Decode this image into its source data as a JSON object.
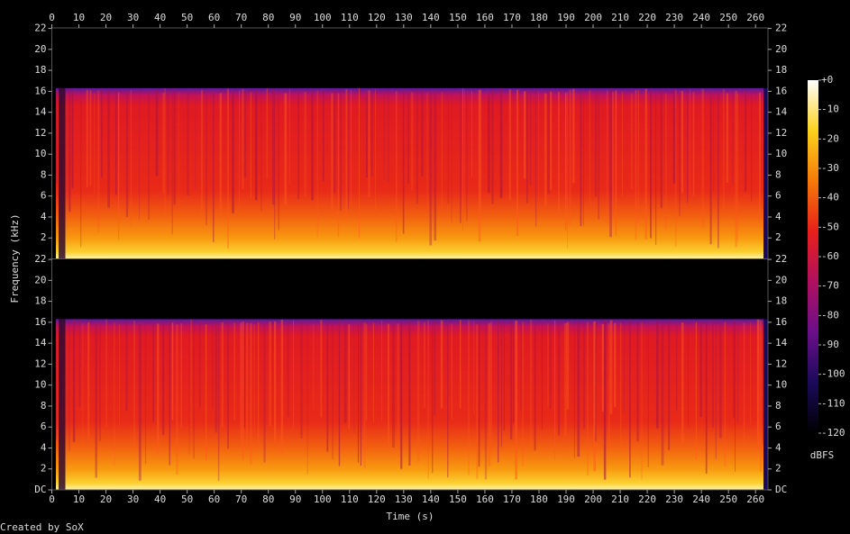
{
  "chart_data": [
    {
      "type": "spectrogram",
      "xlim": [
        0,
        264.6
      ],
      "xticks": [
        0,
        10,
        20,
        30,
        40,
        50,
        60,
        70,
        80,
        90,
        100,
        110,
        120,
        130,
        140,
        150,
        160,
        170,
        180,
        190,
        200,
        210,
        220,
        230,
        240,
        250,
        260
      ],
      "ylim": [
        0,
        22.05
      ],
      "yticks": [
        2,
        4,
        6,
        8,
        10,
        12,
        14,
        16,
        18,
        20,
        22
      ]
    },
    {
      "type": "spectrogram",
      "xlim": [
        0,
        264.6
      ],
      "xticks": [
        0,
        10,
        20,
        30,
        40,
        50,
        60,
        70,
        80,
        90,
        100,
        110,
        120,
        130,
        140,
        150,
        160,
        170,
        180,
        190,
        200,
        210,
        220,
        230,
        240,
        250,
        260
      ],
      "ylim": [
        0,
        22.05
      ],
      "yticks": [
        {
          "value": 0,
          "label": "DC"
        },
        2,
        4,
        6,
        8,
        10,
        12,
        14,
        16,
        18,
        20,
        22
      ]
    }
  ],
  "xlabel": "Time (s)",
  "ylabel": "Frequency (kHz)",
  "colorbar": {
    "label": "dBFS",
    "clim": [
      -120,
      0
    ],
    "ticks": [
      {
        "value": 0,
        "label": "+0"
      },
      -10,
      -20,
      -30,
      -40,
      -50,
      -60,
      -70,
      -80,
      -90,
      -100,
      -110,
      -120
    ],
    "colormap": [
      "#000000",
      "#1a0a5a",
      "#6a0f8a",
      "#b01060",
      "#e8201a",
      "#f57a0a",
      "#fbd21e",
      "#ffffff"
    ]
  },
  "credit": "Created by SoX"
}
